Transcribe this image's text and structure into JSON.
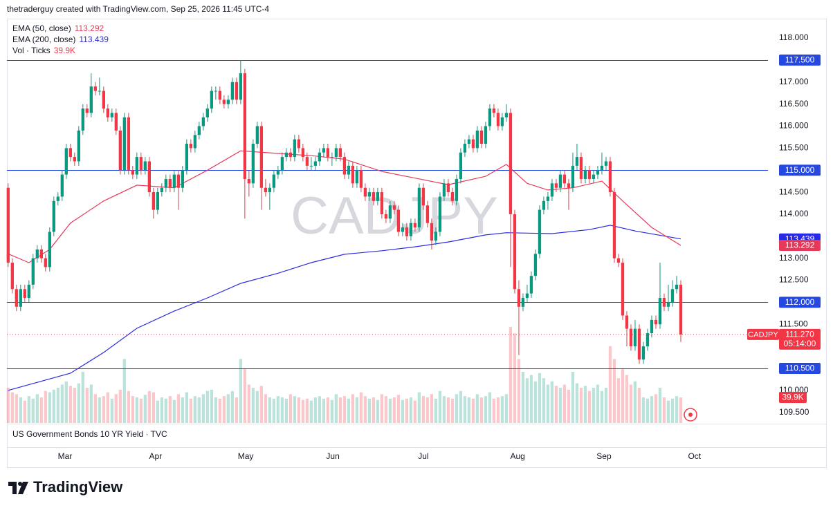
{
  "header": {
    "credit": "thetraderguy created with TradingView.com, Sep 25, 2026 11:45 UTC-4"
  },
  "footer": {
    "brand": "TradingView"
  },
  "chart_data": {
    "type": "candlestick",
    "symbol": "CADJPY",
    "up_color": "#089981",
    "down_color": "#f23645",
    "xlim": [
      -0.3,
      183
    ],
    "ylim": [
      109.26,
      118.44
    ],
    "grid": false,
    "xticks": [
      {
        "value": 13.7,
        "label": "Mar"
      },
      {
        "value": 35.5,
        "label": "Apr"
      },
      {
        "value": 57.2,
        "label": "May"
      },
      {
        "value": 78.2,
        "label": "Jun"
      },
      {
        "value": 100,
        "label": "Jul"
      },
      {
        "value": 122.7,
        "label": "Aug"
      },
      {
        "value": 143.5,
        "label": "Sep"
      },
      {
        "value": 165.3,
        "label": "Oct"
      }
    ],
    "yticks": [
      {
        "value": 118,
        "label": "118.000"
      },
      {
        "value": 117,
        "label": "117.000"
      },
      {
        "value": 116.5,
        "label": "116.500"
      },
      {
        "value": 116,
        "label": "116.000"
      },
      {
        "value": 115.5,
        "label": "115.500"
      },
      {
        "value": 114.5,
        "label": "114.500"
      },
      {
        "value": 114,
        "label": "114.000"
      },
      {
        "value": 113,
        "label": "113.000"
      },
      {
        "value": 112.5,
        "label": "112.500"
      },
      {
        "value": 111.5,
        "label": "111.500"
      },
      {
        "value": 110,
        "label": "110.000"
      },
      {
        "value": 109.5,
        "label": "109.500"
      }
    ],
    "levels": [
      {
        "value": 117.5,
        "label": "117.500"
      },
      {
        "value": 115,
        "label": "115.000"
      },
      {
        "value": 112,
        "label": "112.000"
      },
      {
        "value": 110.5,
        "label": "110.500"
      }
    ],
    "level_color": "#2448e0",
    "last_close_label": "111.270",
    "countdown": "05:14:00",
    "volume_name": "Vol · Ticks",
    "volume_label": "39.9K",
    "lower_pane": "US Government Bonds 10 YR Yield · TVC",
    "ohlc": [
      [
        114.6,
        114.7,
        112.8,
        112.9
      ],
      [
        112.9,
        113.0,
        112.2,
        112.3
      ],
      [
        112.3,
        112.4,
        111.8,
        111.9
      ],
      [
        111.9,
        112.4,
        111.8,
        112.3
      ],
      [
        112.3,
        112.4,
        112.0,
        112.1
      ],
      [
        112.1,
        112.5,
        112.0,
        112.4
      ],
      [
        112.4,
        113.1,
        112.3,
        113.0
      ],
      [
        113.0,
        113.3,
        112.9,
        113.2
      ],
      [
        113.2,
        113.3,
        112.9,
        113.0
      ],
      [
        113.0,
        113.1,
        112.7,
        112.8
      ],
      [
        112.8,
        113.7,
        112.7,
        113.6
      ],
      [
        113.6,
        114.4,
        113.5,
        114.3
      ],
      [
        114.3,
        114.5,
        114.2,
        114.4
      ],
      [
        114.4,
        115.0,
        114.3,
        114.9
      ],
      [
        114.9,
        115.6,
        114.8,
        115.5
      ],
      [
        115.5,
        115.6,
        115.2,
        115.3
      ],
      [
        115.3,
        115.4,
        115.1,
        115.2
      ],
      [
        115.2,
        116.0,
        115.1,
        115.9
      ],
      [
        115.9,
        116.5,
        115.8,
        116.4
      ],
      [
        116.4,
        116.5,
        116.2,
        116.3
      ],
      [
        116.3,
        117.2,
        116.2,
        116.9
      ],
      [
        116.9,
        117.0,
        116.7,
        116.8
      ],
      [
        116.8,
        117.1,
        116.7,
        116.8
      ],
      [
        116.8,
        116.9,
        116.3,
        116.4
      ],
      [
        116.4,
        116.5,
        116.1,
        116.2
      ],
      [
        116.2,
        116.4,
        116.1,
        116.3
      ],
      [
        116.3,
        116.4,
        115.8,
        115.9
      ],
      [
        115.9,
        116.0,
        114.9,
        115.0
      ],
      [
        115.0,
        116.3,
        114.9,
        116.2
      ],
      [
        116.2,
        116.3,
        114.9,
        115.0
      ],
      [
        115.0,
        115.1,
        114.8,
        114.9
      ],
      [
        114.9,
        115.4,
        114.8,
        115.3
      ],
      [
        115.3,
        115.4,
        114.9,
        115.0
      ],
      [
        115.0,
        115.3,
        114.9,
        115.2
      ],
      [
        115.2,
        115.3,
        114.4,
        114.5
      ],
      [
        114.5,
        114.6,
        113.9,
        114.1
      ],
      [
        114.1,
        114.6,
        114.0,
        114.5
      ],
      [
        114.5,
        114.7,
        114.4,
        114.6
      ],
      [
        114.6,
        114.9,
        114.5,
        114.8
      ],
      [
        114.8,
        114.9,
        114.5,
        114.6
      ],
      [
        114.6,
        115.0,
        114.5,
        114.9
      ],
      [
        114.9,
        115.0,
        114.1,
        114.6
      ],
      [
        114.6,
        115.1,
        114.5,
        115.0
      ],
      [
        115.0,
        115.7,
        114.9,
        115.6
      ],
      [
        115.6,
        115.7,
        115.4,
        115.5
      ],
      [
        115.5,
        115.9,
        115.4,
        115.8
      ],
      [
        115.8,
        116.1,
        115.7,
        116.0
      ],
      [
        116.0,
        116.3,
        115.9,
        116.2
      ],
      [
        116.2,
        116.5,
        116.1,
        116.4
      ],
      [
        116.4,
        116.9,
        116.3,
        116.8
      ],
      [
        116.8,
        116.9,
        116.6,
        116.8
      ],
      [
        116.8,
        116.9,
        116.5,
        116.6
      ],
      [
        116.6,
        116.7,
        116.4,
        116.5
      ],
      [
        116.5,
        116.7,
        116.4,
        116.6
      ],
      [
        116.6,
        117.1,
        116.5,
        117.0
      ],
      [
        117.0,
        117.1,
        116.5,
        116.6
      ],
      [
        116.6,
        117.5,
        116.5,
        117.2
      ],
      [
        117.2,
        117.3,
        113.9,
        114.8
      ],
      [
        114.8,
        115.0,
        114.4,
        114.7
      ],
      [
        114.7,
        115.7,
        114.6,
        115.6
      ],
      [
        115.6,
        116.1,
        115.5,
        116.0
      ],
      [
        116.0,
        116.1,
        114.1,
        114.6
      ],
      [
        114.6,
        114.8,
        114.4,
        114.5
      ],
      [
        114.5,
        114.7,
        114.1,
        114.6
      ],
      [
        114.6,
        115.0,
        114.5,
        114.9
      ],
      [
        114.9,
        115.1,
        114.8,
        115.0
      ],
      [
        115.0,
        115.4,
        114.9,
        115.3
      ],
      [
        115.3,
        115.5,
        115.2,
        115.4
      ],
      [
        115.4,
        115.5,
        115.2,
        115.3
      ],
      [
        115.3,
        115.8,
        115.2,
        115.7
      ],
      [
        115.7,
        115.8,
        115.4,
        115.5
      ],
      [
        115.5,
        115.6,
        115.2,
        115.3
      ],
      [
        115.3,
        115.4,
        115.0,
        115.1
      ],
      [
        115.1,
        115.3,
        115.0,
        115.1
      ],
      [
        115.1,
        115.3,
        115.0,
        115.2
      ],
      [
        115.2,
        115.5,
        115.1,
        115.4
      ],
      [
        115.4,
        115.6,
        115.3,
        115.5
      ],
      [
        115.5,
        115.6,
        115.2,
        115.3
      ],
      [
        115.3,
        115.4,
        115.1,
        115.3
      ],
      [
        115.3,
        115.6,
        115.2,
        115.5
      ],
      [
        115.5,
        115.6,
        115.2,
        115.3
      ],
      [
        115.3,
        115.4,
        114.8,
        114.9
      ],
      [
        114.9,
        115.2,
        114.8,
        115.1
      ],
      [
        115.1,
        115.2,
        114.6,
        114.7
      ],
      [
        114.7,
        115.1,
        114.6,
        115.0
      ],
      [
        115.0,
        115.1,
        114.5,
        114.6
      ],
      [
        114.6,
        114.7,
        114.3,
        114.4
      ],
      [
        114.4,
        114.6,
        114.3,
        114.5
      ],
      [
        114.5,
        114.6,
        114.2,
        114.3
      ],
      [
        114.3,
        114.6,
        114.2,
        114.5
      ],
      [
        114.5,
        114.6,
        113.9,
        114.0
      ],
      [
        114.0,
        114.1,
        113.8,
        113.9
      ],
      [
        113.9,
        114.3,
        113.8,
        114.2
      ],
      [
        114.2,
        114.3,
        114.0,
        114.1
      ],
      [
        114.1,
        114.2,
        113.5,
        113.6
      ],
      [
        113.6,
        113.8,
        113.5,
        113.7
      ],
      [
        113.7,
        113.8,
        113.4,
        113.5
      ],
      [
        113.5,
        113.9,
        113.4,
        113.8
      ],
      [
        113.8,
        113.9,
        113.6,
        113.7
      ],
      [
        113.7,
        114.7,
        113.6,
        114.6
      ],
      [
        114.6,
        114.7,
        114.1,
        114.2
      ],
      [
        114.2,
        114.3,
        113.7,
        113.8
      ],
      [
        113.8,
        113.9,
        113.2,
        113.4
      ],
      [
        113.4,
        113.7,
        113.3,
        113.6
      ],
      [
        113.6,
        114.5,
        113.5,
        114.4
      ],
      [
        114.4,
        114.8,
        114.3,
        114.7
      ],
      [
        114.7,
        114.8,
        114.4,
        114.5
      ],
      [
        114.5,
        114.6,
        114.2,
        114.3
      ],
      [
        114.3,
        114.9,
        114.2,
        114.8
      ],
      [
        114.8,
        115.5,
        114.7,
        115.4
      ],
      [
        115.4,
        115.7,
        115.3,
        115.6
      ],
      [
        115.6,
        115.8,
        115.5,
        115.7
      ],
      [
        115.7,
        115.8,
        115.4,
        115.5
      ],
      [
        115.5,
        116.0,
        115.4,
        115.9
      ],
      [
        115.9,
        116.0,
        115.5,
        115.6
      ],
      [
        115.6,
        116.1,
        115.5,
        116.0
      ],
      [
        116.0,
        116.5,
        115.9,
        116.4
      ],
      [
        116.4,
        116.5,
        116.2,
        116.3
      ],
      [
        116.3,
        116.4,
        115.9,
        116.0
      ],
      [
        116.0,
        116.3,
        115.9,
        116.2
      ],
      [
        116.2,
        116.5,
        116.1,
        116.3
      ],
      [
        116.3,
        116.4,
        112.8,
        114.0
      ],
      [
        114.0,
        114.1,
        112.2,
        112.3
      ],
      [
        112.3,
        112.5,
        110.8,
        111.9
      ],
      [
        111.9,
        112.2,
        111.8,
        112.1
      ],
      [
        112.1,
        112.4,
        112.0,
        112.2
      ],
      [
        112.2,
        112.7,
        112.1,
        112.6
      ],
      [
        112.6,
        113.2,
        112.5,
        113.1
      ],
      [
        113.1,
        114.2,
        113.0,
        114.1
      ],
      [
        114.1,
        114.4,
        114.0,
        114.3
      ],
      [
        114.3,
        114.5,
        114.1,
        114.4
      ],
      [
        114.4,
        114.8,
        114.3,
        114.7
      ],
      [
        114.7,
        114.8,
        114.5,
        114.6
      ],
      [
        114.6,
        115.0,
        114.5,
        114.9
      ],
      [
        114.9,
        115.0,
        114.6,
        114.7
      ],
      [
        114.7,
        114.8,
        114.1,
        114.6
      ],
      [
        114.6,
        115.4,
        114.5,
        115.1
      ],
      [
        115.1,
        115.6,
        115.0,
        115.3
      ],
      [
        115.3,
        115.4,
        114.7,
        114.8
      ],
      [
        114.8,
        115.1,
        114.7,
        115.0
      ],
      [
        115.0,
        115.1,
        114.7,
        114.8
      ],
      [
        114.8,
        115.0,
        114.7,
        114.9
      ],
      [
        114.9,
        115.1,
        114.8,
        115.0
      ],
      [
        115.0,
        115.4,
        114.9,
        115.1
      ],
      [
        115.1,
        115.3,
        115.0,
        115.2
      ],
      [
        115.2,
        115.3,
        114.4,
        114.5
      ],
      [
        114.5,
        114.6,
        112.9,
        113.0
      ],
      [
        113.0,
        113.1,
        112.8,
        112.9
      ],
      [
        112.9,
        113.0,
        111.6,
        111.7
      ],
      [
        111.7,
        111.8,
        111.0,
        111.4
      ],
      [
        111.4,
        111.5,
        110.9,
        111.0
      ],
      [
        111.0,
        111.6,
        110.9,
        111.4
      ],
      [
        111.4,
        111.5,
        110.6,
        110.7
      ],
      [
        110.7,
        111.1,
        110.6,
        111.0
      ],
      [
        111.0,
        111.4,
        110.9,
        111.3
      ],
      [
        111.3,
        111.7,
        111.2,
        111.6
      ],
      [
        111.6,
        111.7,
        111.4,
        111.5
      ],
      [
        111.5,
        112.9,
        111.4,
        112.1
      ],
      [
        112.1,
        112.2,
        111.8,
        111.9
      ],
      [
        111.9,
        112.4,
        111.8,
        112.0
      ],
      [
        112.0,
        112.5,
        111.9,
        112.3
      ],
      [
        112.3,
        112.6,
        112.2,
        112.4
      ],
      [
        112.4,
        112.5,
        111.1,
        111.27
      ]
    ],
    "volume": [
      55000,
      48000,
      45000,
      40000,
      35000,
      42000,
      38000,
      45000,
      40000,
      50000,
      48000,
      52000,
      55000,
      60000,
      65000,
      58000,
      55000,
      62000,
      80000,
      55000,
      60000,
      45000,
      40000,
      42000,
      48000,
      38000,
      45000,
      52000,
      100000,
      50000,
      42000,
      40000,
      38000,
      44000,
      50000,
      48000,
      35000,
      40000,
      38000,
      42000,
      36000,
      45000,
      40000,
      48000,
      38000,
      42000,
      40000,
      45000,
      50000,
      52000,
      40000,
      38000,
      42000,
      45000,
      50000,
      40000,
      100000,
      85000,
      60000,
      55000,
      50000,
      58000,
      45000,
      40000,
      38000,
      42000,
      40000,
      38000,
      45000,
      42000,
      40000,
      36000,
      38000,
      35000,
      40000,
      42000,
      38000,
      40000,
      36000,
      45000,
      40000,
      42000,
      38000,
      45000,
      40000,
      48000,
      42000,
      38000,
      40000,
      36000,
      45000,
      42000,
      38000,
      40000,
      44000,
      36000,
      38000,
      40000,
      35000,
      48000,
      42000,
      40000,
      45000,
      38000,
      50000,
      42000,
      40000,
      38000,
      45000,
      50000,
      42000,
      40000,
      38000,
      45000,
      40000,
      42000,
      48000,
      38000,
      40000,
      42000,
      45000,
      150000,
      140000,
      100000,
      80000,
      70000,
      75000,
      65000,
      78000,
      70000,
      60000,
      65000,
      58000,
      55000,
      60000,
      52000,
      80000,
      62000,
      55000,
      58000,
      50000,
      55000,
      60000,
      50000,
      55000,
      120000,
      100000,
      70000,
      85000,
      75000,
      60000,
      65000,
      55000,
      40000,
      38000,
      42000,
      45000,
      55000,
      40000,
      35000,
      38000,
      42000,
      39900
    ],
    "ema": [
      {
        "name": "EMA (50, close)",
        "color": "#e8385a",
        "x": [
          0,
          5,
          10,
          15,
          23,
          31,
          40,
          48,
          56,
          65,
          73,
          81,
          90,
          98,
          106,
          115,
          120,
          125,
          130,
          136,
          143,
          148,
          155,
          162
        ],
        "values": [
          113.1,
          112.9,
          113.2,
          113.8,
          114.3,
          114.66,
          114.6,
          115.0,
          115.44,
          115.38,
          115.33,
          115.25,
          114.97,
          114.82,
          114.67,
          114.86,
          115.13,
          114.7,
          114.55,
          114.6,
          114.75,
          114.3,
          113.7,
          113.292
        ]
      },
      {
        "name": "EMA (200, close)",
        "color": "#2a2ae6",
        "x": [
          0,
          15,
          23,
          31,
          40,
          48,
          56,
          65,
          73,
          81,
          90,
          98,
          106,
          115,
          120,
          131,
          140,
          145,
          151,
          162
        ],
        "values": [
          110.0,
          110.39,
          110.86,
          111.41,
          111.8,
          112.1,
          112.43,
          112.66,
          112.9,
          113.09,
          113.17,
          113.26,
          113.37,
          113.53,
          113.58,
          113.56,
          113.65,
          113.75,
          113.62,
          113.439
        ]
      }
    ]
  }
}
